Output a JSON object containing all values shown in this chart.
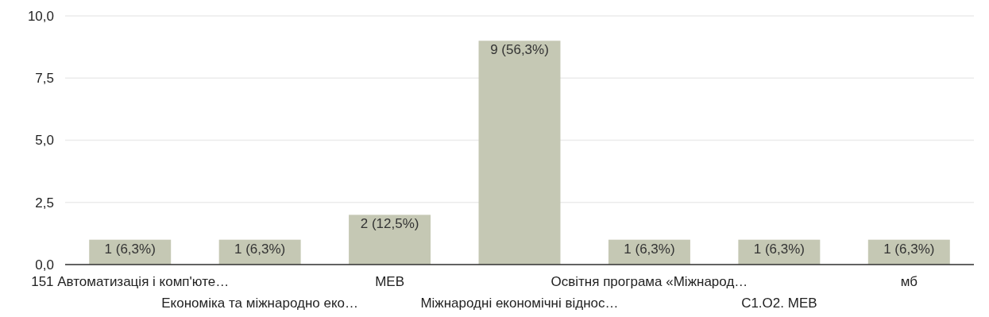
{
  "chart_data": {
    "type": "bar",
    "categories": [
      "151 Автоматизація і комп'юте…",
      "Економіка та міжнародно еко…",
      "МЕВ",
      "Міжнародні економічні віднос…",
      "Освітня програма «Міжнарод…",
      "С1.О2. МЕВ",
      "мб"
    ],
    "values": [
      1,
      1,
      2,
      9,
      1,
      1,
      1
    ],
    "value_labels": [
      "1 (6,3%)",
      "1 (6,3%)",
      "2 (12,5%)",
      "9 (56,3%)",
      "1 (6,3%)",
      "1 (6,3%)",
      "1 (6,3%)"
    ],
    "color": "#c5c8b4",
    "ylim": [
      0,
      10
    ],
    "yticks": [
      {
        "value": 0,
        "label": "0,0"
      },
      {
        "value": 2.5,
        "label": "2,5"
      },
      {
        "value": 5,
        "label": "5,0"
      },
      {
        "value": 7.5,
        "label": "7,5"
      },
      {
        "value": 10,
        "label": "10,0"
      }
    ],
    "grid": "y"
  }
}
